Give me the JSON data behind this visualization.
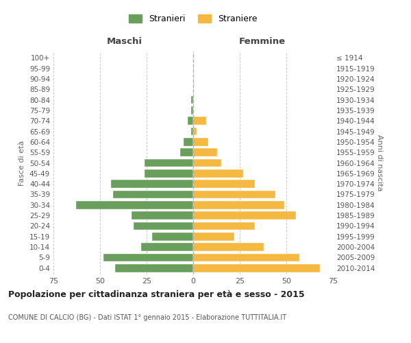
{
  "age_groups": [
    "0-4",
    "5-9",
    "10-14",
    "15-19",
    "20-24",
    "25-29",
    "30-34",
    "35-39",
    "40-44",
    "45-49",
    "50-54",
    "55-59",
    "60-64",
    "65-69",
    "70-74",
    "75-79",
    "80-84",
    "85-89",
    "90-94",
    "95-99",
    "100+"
  ],
  "birth_years": [
    "2010-2014",
    "2005-2009",
    "2000-2004",
    "1995-1999",
    "1990-1994",
    "1985-1989",
    "1980-1984",
    "1975-1979",
    "1970-1974",
    "1965-1969",
    "1960-1964",
    "1955-1959",
    "1950-1954",
    "1945-1949",
    "1940-1944",
    "1935-1939",
    "1930-1934",
    "1925-1929",
    "1920-1924",
    "1915-1919",
    "≤ 1914"
  ],
  "maschi": [
    42,
    48,
    28,
    22,
    32,
    33,
    63,
    43,
    44,
    26,
    26,
    7,
    5,
    1,
    3,
    1,
    1,
    0,
    0,
    0,
    0
  ],
  "femmine": [
    68,
    57,
    38,
    22,
    33,
    55,
    49,
    44,
    33,
    27,
    15,
    13,
    8,
    2,
    7,
    0,
    0,
    0,
    0,
    0,
    0
  ],
  "male_color": "#6a9e5c",
  "female_color": "#f5b942",
  "legend_male": "Stranieri",
  "legend_female": "Straniere",
  "title_main": "Popolazione per cittadinanza straniera per età e sesso - 2015",
  "title_sub": "COMUNE DI CALCIO (BG) - Dati ISTAT 1° gennaio 2015 - Elaborazione TUTTITALIA.IT",
  "xlabel_left": "Maschi",
  "xlabel_right": "Femmine",
  "ylabel_left": "Fasce di età",
  "ylabel_right": "Anni di nascita",
  "xlim": 75,
  "background_color": "#ffffff",
  "grid_color": "#cccccc"
}
